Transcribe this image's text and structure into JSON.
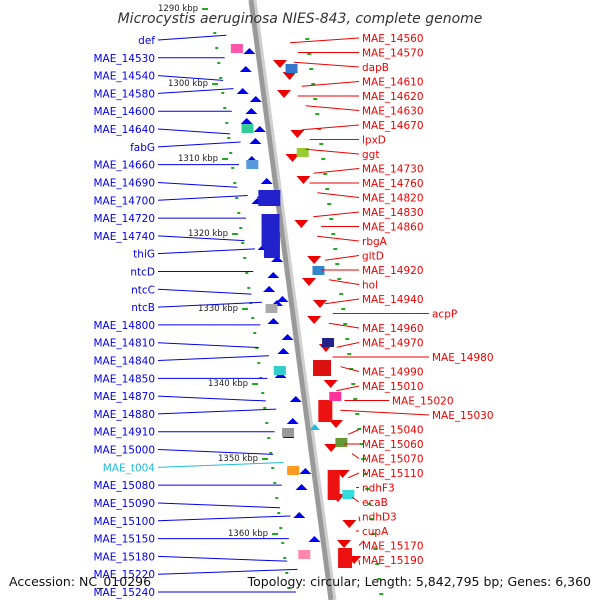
{
  "title": "Microcystis aeruginosa NIES-843, complete genome",
  "footer": {
    "accession": "Accession: NC_010296",
    "summary": "Topology: circular; Length: 5,842,795 bp; Genes: 6,360"
  },
  "colors": {
    "left_strand": "#0000ee",
    "right_strand": "#ee0000",
    "rna": "#22bbdd",
    "backbone": "#999999",
    "tick": "#22aa22"
  },
  "kbp_markers": [
    {
      "label": "1290 kbp"
    },
    {
      "label": "1300 kbp"
    },
    {
      "label": "1310 kbp"
    },
    {
      "label": "1320 kbp"
    },
    {
      "label": "1330 kbp"
    },
    {
      "label": "1340 kbp"
    },
    {
      "label": "1350 kbp"
    },
    {
      "label": "1360 kbp"
    }
  ],
  "left_labels": [
    {
      "text": "def"
    },
    {
      "text": "MAE_14530"
    },
    {
      "text": "MAE_14540"
    },
    {
      "text": "MAE_14580"
    },
    {
      "text": "MAE_14600"
    },
    {
      "text": "MAE_14640"
    },
    {
      "text": "fabG"
    },
    {
      "text": "MAE_14660"
    },
    {
      "text": "MAE_14690"
    },
    {
      "text": "MAE_14700"
    },
    {
      "text": "MAE_14720"
    },
    {
      "text": "MAE_14740"
    },
    {
      "text": "thiG"
    },
    {
      "text": "ntcD"
    },
    {
      "text": "ntcC"
    },
    {
      "text": "ntcB"
    },
    {
      "text": "MAE_14800"
    },
    {
      "text": "MAE_14810"
    },
    {
      "text": "MAE_14840"
    },
    {
      "text": "MAE_14850"
    },
    {
      "text": "MAE_14870"
    },
    {
      "text": "MAE_14880"
    },
    {
      "text": "MAE_14910"
    },
    {
      "text": "MAE_15000"
    },
    {
      "text": "MAE_t004",
      "rna": true
    },
    {
      "text": "MAE_15080"
    },
    {
      "text": "MAE_15090"
    },
    {
      "text": "MAE_15100"
    },
    {
      "text": "MAE_15150"
    },
    {
      "text": "MAE_15180"
    },
    {
      "text": "MAE_15220"
    },
    {
      "text": "MAE_15240"
    }
  ],
  "right_labels": [
    {
      "text": "MAE_14560"
    },
    {
      "text": "MAE_14570"
    },
    {
      "text": "dapB"
    },
    {
      "text": "MAE_14610"
    },
    {
      "text": "MAE_14620"
    },
    {
      "text": "MAE_14630"
    },
    {
      "text": "MAE_14670"
    },
    {
      "text": "lpxD"
    },
    {
      "text": "ggt"
    },
    {
      "text": "MAE_14730"
    },
    {
      "text": "MAE_14760"
    },
    {
      "text": "MAE_14820"
    },
    {
      "text": "MAE_14830"
    },
    {
      "text": "MAE_14860"
    },
    {
      "text": "rbgA"
    },
    {
      "text": "gltD"
    },
    {
      "text": "MAE_14920"
    },
    {
      "text": "hol"
    },
    {
      "text": "MAE_14940"
    },
    {
      "text": "acpP"
    },
    {
      "text": "MAE_14960"
    },
    {
      "text": "MAE_14970"
    },
    {
      "text": "MAE_14980"
    },
    {
      "text": "MAE_14990"
    },
    {
      "text": "MAE_15010"
    },
    {
      "text": "MAE_15020"
    },
    {
      "text": "MAE_15030"
    },
    {
      "text": "MAE_15040"
    },
    {
      "text": "MAE_15060"
    },
    {
      "text": "MAE_15070"
    },
    {
      "text": "MAE_15110"
    },
    {
      "text": "ndhF3"
    },
    {
      "text": "ecaB"
    },
    {
      "text": "ndhD3"
    },
    {
      "text": "cupA"
    },
    {
      "text": "MAE_15170"
    },
    {
      "text": "MAE_15190"
    }
  ]
}
